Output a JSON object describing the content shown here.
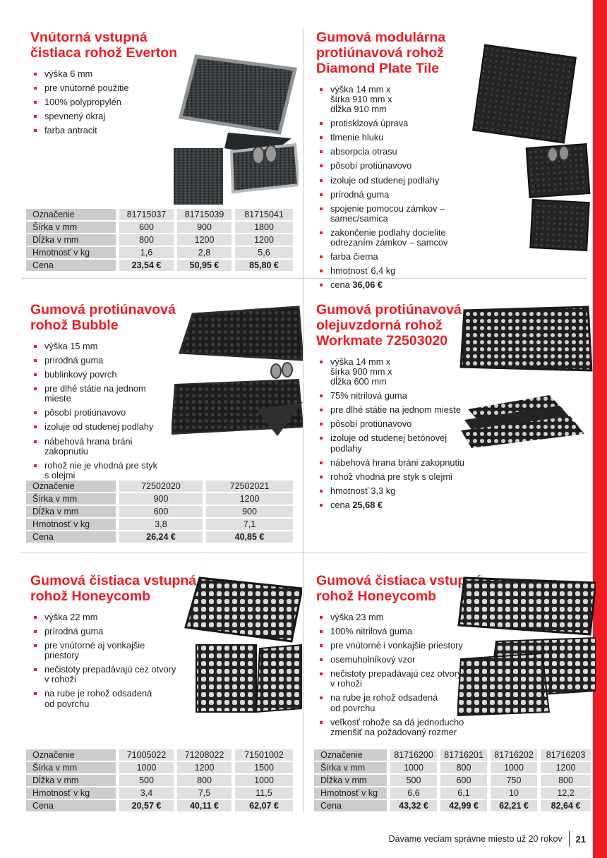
{
  "colors": {
    "accent": "#ed1c24",
    "table-label-bg": "#cccccc",
    "table-value-bg": "#e0e0e0"
  },
  "footer": {
    "tagline": "Dávame veciam správne miesto už 20 rokov",
    "page_number": "21"
  },
  "products": [
    {
      "title": "Vnútorná vstupná\nčistiaca rohož Everton",
      "bullets": [
        "výška 6 mm",
        "pre vnútorné použitie",
        "100% polypropylén",
        "spevnený okraj",
        "farba antracit"
      ],
      "table": {
        "rows": [
          {
            "label": "Označenie",
            "values": [
              "81715037",
              "81715039",
              "81715041"
            ]
          },
          {
            "label": "Šírka v mm",
            "values": [
              "600",
              "900",
              "1800"
            ]
          },
          {
            "label": "Dĺžka v mm",
            "values": [
              "800",
              "1200",
              "1200"
            ]
          },
          {
            "label": "Hmotnosť v kg",
            "values": [
              "1,6",
              "2,8",
              "5,6"
            ]
          },
          {
            "label": "Cena",
            "values": [
              "23,54 €",
              "50,95 €",
              "85,80 €"
            ],
            "bold": true
          }
        ]
      }
    },
    {
      "title": "Gumová modulárna\nprotiúnavová rohož\nDiamond Plate Tile",
      "bullets": [
        "výška 14 mm x\nšírka 910 mm x\ndĺžka 910 mm",
        "protisklzová úprava",
        "tlmenie hluku",
        "absorpcia otrasu",
        "pôsobí protiúnavovo",
        "izoluje od studenej podlahy",
        "prírodná guma",
        "spojenie pomocou zámkov –\nsamec/samica",
        "zakončenie podlahy docielite\nodrezaním zámkov – samcov",
        "farba čierna",
        "hmotnosť 6,4 kg",
        {
          "pre": "cena ",
          "bold": "36,06 €"
        }
      ]
    },
    {
      "title": "Gumová protiúnavová\nrohož Bubble",
      "bullets": [
        "výška 15 mm",
        "prírodná guma",
        "bublinkový povrch",
        "pre dlhé státie na jednom\nmieste",
        "pôsobí protiúnavovo",
        "izoluje od studenej podlahy",
        "nábehová hrana bráni\nzakopnutiu",
        "rohož nie je vhodná pre styk\ns olejmi"
      ],
      "table": {
        "rows": [
          {
            "label": "Označenie",
            "values": [
              "72502020",
              "72502021"
            ]
          },
          {
            "label": "Šírka v mm",
            "values": [
              "900",
              "1200"
            ]
          },
          {
            "label": "Dĺžka v mm",
            "values": [
              "600",
              "900"
            ]
          },
          {
            "label": "Hmotnosť v kg",
            "values": [
              "3,8",
              "7,1"
            ]
          },
          {
            "label": "Cena",
            "values": [
              "26,24 €",
              "40,85 €"
            ],
            "bold": true
          }
        ]
      }
    },
    {
      "title": "Gumová protiúnavová\nolejuvzdorná rohož\nWorkmate 72503020",
      "bullets": [
        "výška 14 mm x\nšírka 900 mm x\ndĺžka 600 mm",
        "75% nitrilová guma",
        "pre dlhé státie na jednom mieste",
        "pôsobí protiúnavovo",
        "izoluje od studenej betónovej\npodlahy",
        "nábehová hrana bráni zakopnutiu",
        "rohož vhodná pre styk s olejmi",
        "hmotnosť 3,3 kg",
        {
          "pre": "cena ",
          "bold": "25,68 €"
        }
      ]
    },
    {
      "title": "Gumová čistiaca vstupná\nrohož Honeycomb",
      "bullets": [
        "výška 22 mm",
        "prírodná guma",
        "pre vnútorné aj vonkajšie\npriestory",
        "nečistoty prepadávajú cez otvory\nv rohoži",
        "na rube je rohož odsadená\nod povrchu"
      ],
      "table": {
        "rows": [
          {
            "label": "Označenie",
            "values": [
              "71005022",
              "71208022",
              "71501002"
            ]
          },
          {
            "label": "Šírka v mm",
            "values": [
              "1000",
              "1200",
              "1500"
            ]
          },
          {
            "label": "Dĺžka v mm",
            "values": [
              "500",
              "800",
              "1000"
            ]
          },
          {
            "label": "Hmotnosť v kg",
            "values": [
              "3,4",
              "7,5",
              "11,5"
            ]
          },
          {
            "label": "Cena",
            "values": [
              "20,57 €",
              "40,11 €",
              "62,07 €"
            ],
            "bold": true
          }
        ]
      }
    },
    {
      "title": "Gumová čistiaca vstupná\nrohož Honeycomb",
      "bullets": [
        "výška 23 mm",
        "100% nitrilová guma",
        "pre vnútorné i vonkajšie priestory",
        "osemuholníkový vzor",
        "nečistoty prepadávajú cez otvory\nv rohoži",
        "na rube je rohož odsadená\nod povrchu",
        "veľkosť rohože sa dá jednoducho\nzmenšiť na požadovaný rozmer"
      ],
      "table": {
        "rows": [
          {
            "label": "Označenie",
            "values": [
              "81716200",
              "81716201",
              "81716202",
              "81716203"
            ]
          },
          {
            "label": "Šírka v mm",
            "values": [
              "1000",
              "800",
              "1000",
              "1200"
            ]
          },
          {
            "label": "Dĺžka v mm",
            "values": [
              "500",
              "600",
              "750",
              "800"
            ]
          },
          {
            "label": "Hmotnosť v kg",
            "values": [
              "6,6",
              "6,1",
              "10",
              "12,2"
            ]
          },
          {
            "label": "Cena",
            "values": [
              "43,32 €",
              "42,99 €",
              "62,21 €",
              "82,64 €"
            ],
            "bold": true
          }
        ]
      }
    }
  ]
}
